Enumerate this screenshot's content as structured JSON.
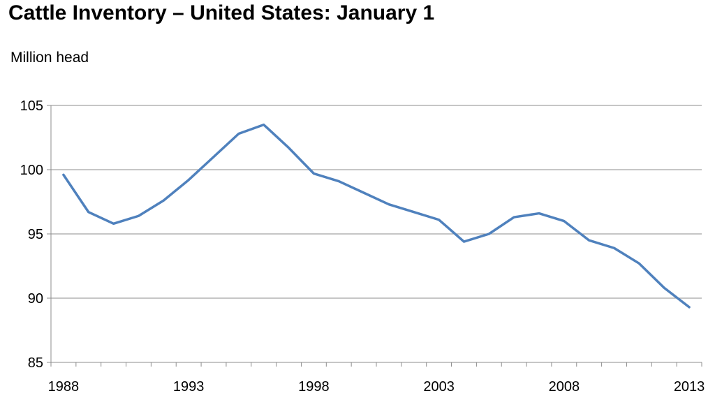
{
  "chart_data": {
    "type": "line",
    "title": "Cattle Inventory – United States: January 1",
    "ylabel": "Million head",
    "xlabel": "",
    "xlim": [
      1988,
      2013
    ],
    "ylim": [
      85,
      105
    ],
    "yticks": [
      85,
      90,
      95,
      100,
      105
    ],
    "xticks": [
      1988,
      1993,
      1998,
      2003,
      2008,
      2013
    ],
    "grid": "horizontal",
    "series": [
      {
        "color": "#4f81bd",
        "x": [
          1988,
          1989,
          1990,
          1991,
          1992,
          1993,
          1994,
          1995,
          1996,
          1997,
          1998,
          1999,
          2000,
          2001,
          2002,
          2003,
          2004,
          2005,
          2006,
          2007,
          2008,
          2009,
          2010,
          2011,
          2012,
          2013
        ],
        "values": [
          99.6,
          96.7,
          95.8,
          96.4,
          97.6,
          99.2,
          101.0,
          102.8,
          103.5,
          101.7,
          99.7,
          99.1,
          98.2,
          97.3,
          96.7,
          96.1,
          94.4,
          95.0,
          96.3,
          96.6,
          96.0,
          94.5,
          93.9,
          92.7,
          90.8,
          89.3
        ]
      }
    ]
  }
}
